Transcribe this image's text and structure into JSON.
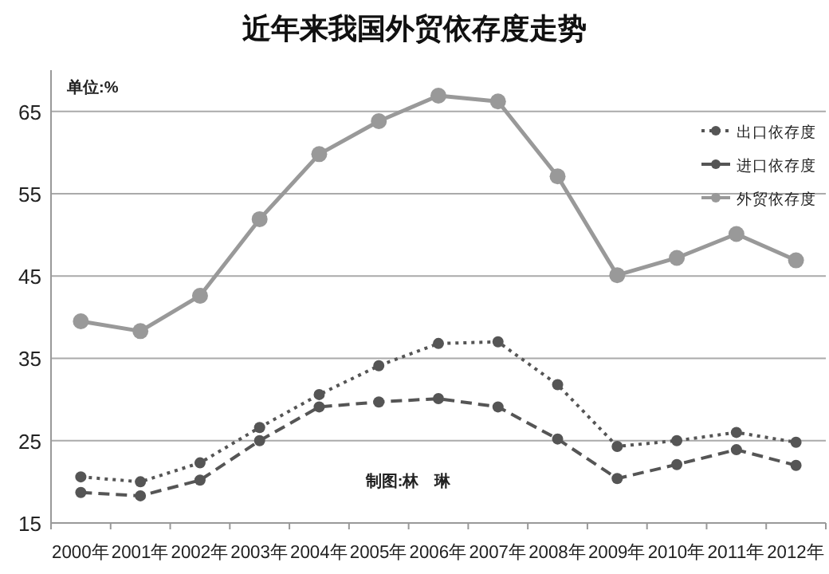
{
  "chart_data": {
    "type": "line",
    "title": "近年来我国外贸依存度走势",
    "categories": [
      "2000年",
      "2001年",
      "2002年",
      "2003年",
      "2004年",
      "2005年",
      "2006年",
      "2007年",
      "2008年",
      "2009年",
      "2010年",
      "2011年",
      "2012年"
    ],
    "series": [
      {
        "name": "出口依存度",
        "color": "#555555",
        "line_style": "dotted",
        "values": [
          20.6,
          20.0,
          22.3,
          26.6,
          30.6,
          34.1,
          36.8,
          37.0,
          31.8,
          24.3,
          25.0,
          26.0,
          24.8
        ]
      },
      {
        "name": "进口依存度",
        "color": "#555555",
        "line_style": "dashed",
        "values": [
          18.7,
          18.3,
          20.2,
          25.0,
          29.1,
          29.7,
          30.1,
          29.1,
          25.2,
          20.4,
          22.1,
          23.9,
          22.0
        ]
      },
      {
        "name": "外贸依存度",
        "color": "#999999",
        "line_style": "solid",
        "values": [
          39.5,
          38.3,
          42.6,
          51.9,
          59.8,
          63.8,
          66.9,
          66.2,
          57.1,
          45.1,
          47.2,
          50.1,
          46.9
        ]
      }
    ],
    "ylim": [
      15,
      70
    ],
    "yticks": [
      15,
      25,
      35,
      45,
      55,
      65
    ],
    "grid": "y",
    "marker": "circle",
    "legend": "top right",
    "annotations": [
      "单位:%",
      "制图:林　琳"
    ]
  }
}
